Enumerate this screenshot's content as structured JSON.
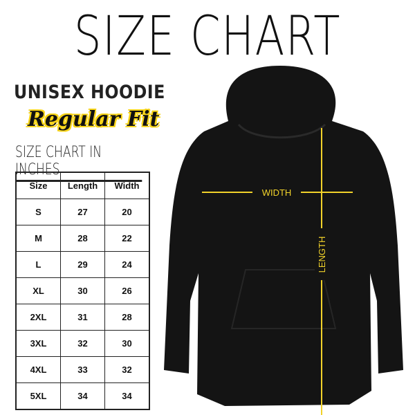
{
  "title": "SIZE CHART",
  "product": "UNISEX HOODIE",
  "fit": "Regular Fit",
  "chart_heading": "SIZE CHART IN INCHES",
  "table": {
    "headers": [
      "Size",
      "Length",
      "Width"
    ],
    "rows": [
      [
        "S",
        "27",
        "20"
      ],
      [
        "M",
        "28",
        "22"
      ],
      [
        "L",
        "29",
        "24"
      ],
      [
        "XL",
        "30",
        "26"
      ],
      [
        "2XL",
        "31",
        "28"
      ],
      [
        "3XL",
        "32",
        "30"
      ],
      [
        "4XL",
        "33",
        "32"
      ],
      [
        "5XL",
        "34",
        "34"
      ]
    ]
  },
  "labels": {
    "width": "WIDTH",
    "length": "LENGTH"
  },
  "colors": {
    "hoodie": "#111111",
    "measure": "#f2d32a"
  }
}
